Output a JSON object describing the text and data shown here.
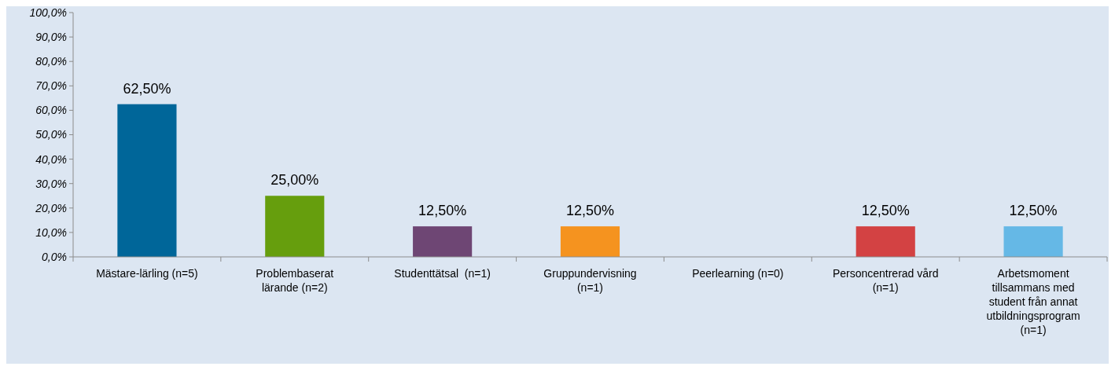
{
  "chart_data": {
    "type": "bar",
    "categories": [
      "Mästare-lärling (n=5)",
      "Problembaserat lärande (n=2)",
      "Studenttätsal  (n=1)",
      "Gruppundervisning (n=1)",
      "Peerlearning (n=0)",
      "Personcentrerad vård (n=1)",
      "Arbetsmoment tillsammans med student från annat utbildningsprogram (n=1)"
    ],
    "values": [
      62.5,
      25,
      12.5,
      12.5,
      0,
      12.5,
      12.5
    ],
    "colors": [
      "#006699",
      "#669e0d",
      "#6e4674",
      "#f5931f",
      "#808080",
      "#d34243",
      "#65b8e6"
    ],
    "value_labels": [
      "62,50%",
      "25,00%",
      "12,50%",
      "12,50%",
      null,
      "12,50%",
      "12,50%"
    ],
    "ylim": [
      0,
      100
    ],
    "yticks": [
      {
        "value": 0,
        "label": "0,0%"
      },
      {
        "value": 10,
        "label": "10,0%"
      },
      {
        "value": 20,
        "label": "20,0%"
      },
      {
        "value": 30,
        "label": "30,0%"
      },
      {
        "value": 40,
        "label": "40,0%"
      },
      {
        "value": 50,
        "label": "50,0%"
      },
      {
        "value": 60,
        "label": "60,0%"
      },
      {
        "value": 70,
        "label": "70,0%"
      },
      {
        "value": 80,
        "label": "80,0%"
      },
      {
        "value": 90,
        "label": "90,0%"
      },
      {
        "value": 100,
        "label": "100,0%"
      }
    ],
    "grid": false
  }
}
